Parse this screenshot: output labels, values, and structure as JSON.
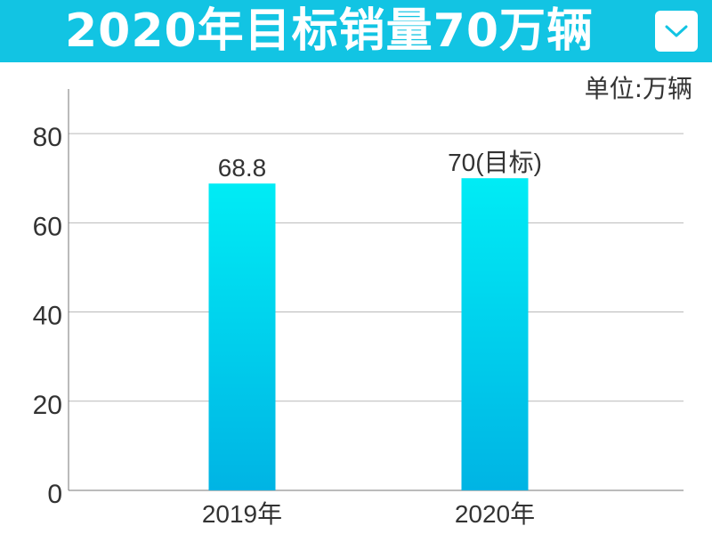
{
  "header": {
    "title": "2020年目标销量70万辆",
    "dropdown_icon": "chevron-down-icon"
  },
  "unit_label": "单位:万辆",
  "colors": {
    "header_bg": "#12c4e3",
    "bar_top": "#00ecf5",
    "bar_bottom": "#00b4e4",
    "grid": "#b9b9b9",
    "axis": "#777777"
  },
  "chart_data": {
    "type": "bar",
    "categories": [
      "2019年",
      "2020年"
    ],
    "values": [
      68.8,
      70
    ],
    "data_labels": [
      "68.8",
      "70(目标)"
    ],
    "ylim": [
      0,
      90
    ],
    "yticks": [
      0,
      20,
      40,
      60,
      80
    ],
    "grid": true,
    "xlabel": "",
    "ylabel": ""
  }
}
